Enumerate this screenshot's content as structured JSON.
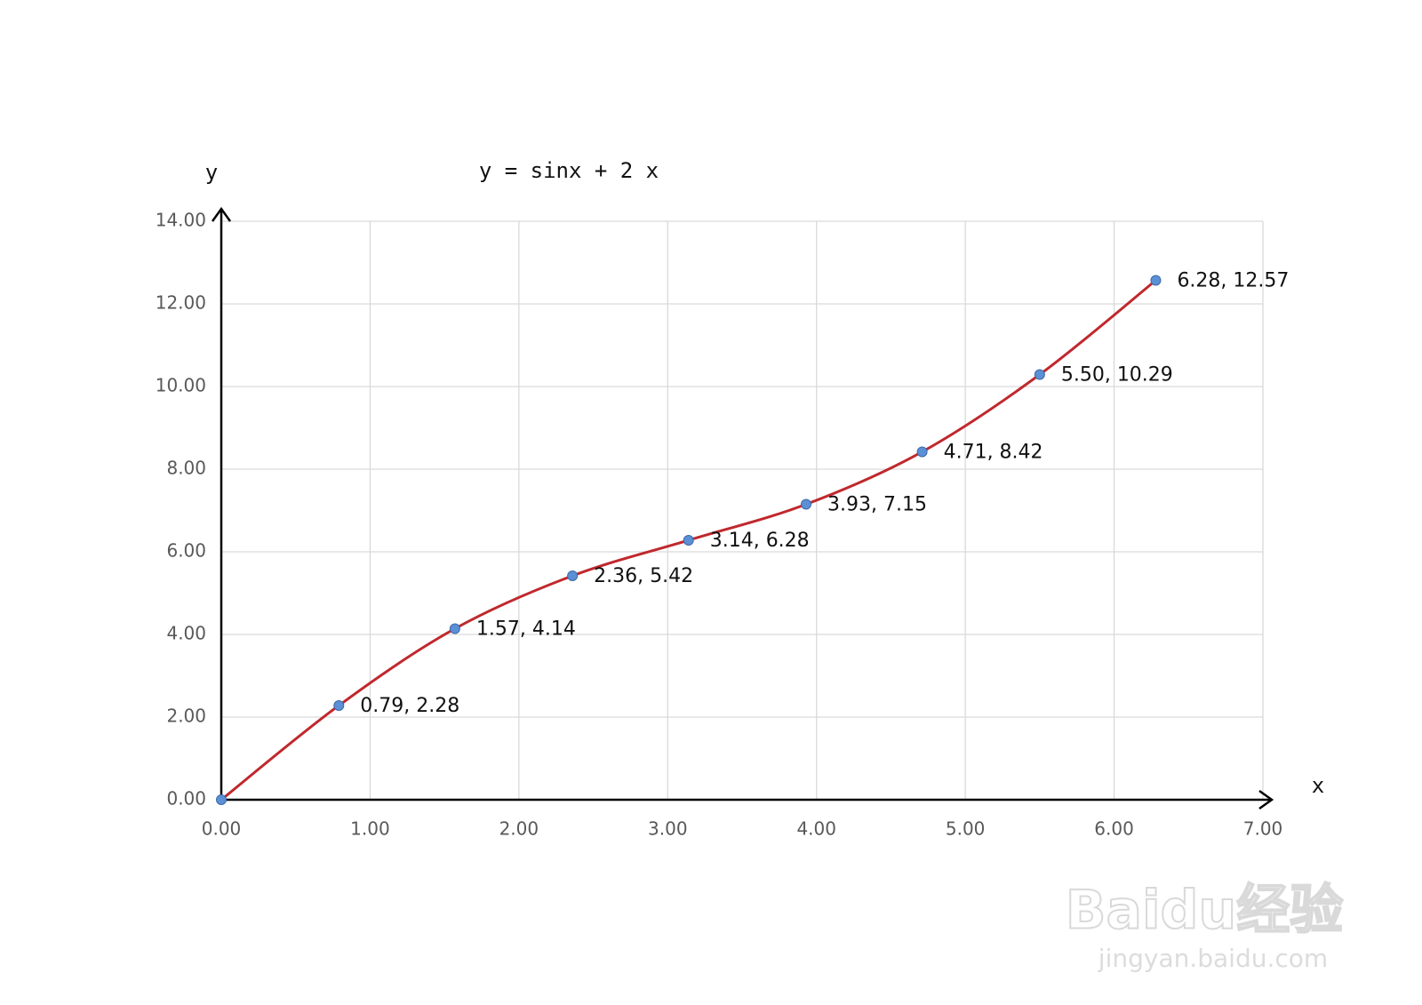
{
  "chart_data": {
    "type": "line",
    "title": "y = sinx + 2 x",
    "x_label": "x",
    "y_label": "y",
    "x": [
      0,
      0.79,
      1.57,
      2.36,
      3.14,
      3.93,
      4.71,
      5.5,
      6.28
    ],
    "values": [
      0,
      2.28,
      4.14,
      5.42,
      6.28,
      7.15,
      8.42,
      10.29,
      12.57
    ],
    "value_labels": [
      null,
      "0.79, 2.28",
      "1.57, 4.14",
      "2.36, 5.42",
      "3.14, 6.28",
      "3.93, 7.15",
      "4.71, 8.42",
      "5.50, 10.29",
      "6.28, 12.57"
    ],
    "color": "#c0282d",
    "marker_color": "#5b8fd6",
    "xlim": [
      0,
      7
    ],
    "xticks": [
      {
        "value": 0,
        "label": "0.00"
      },
      {
        "value": 1,
        "label": "1.00"
      },
      {
        "value": 2,
        "label": "2.00"
      },
      {
        "value": 3,
        "label": "3.00"
      },
      {
        "value": 4,
        "label": "4.00"
      },
      {
        "value": 5,
        "label": "5.00"
      },
      {
        "value": 6,
        "label": "6.00"
      },
      {
        "value": 7,
        "label": "7.00"
      }
    ],
    "ylim": [
      0,
      14
    ],
    "yticks": [
      {
        "value": 0,
        "label": "0.00"
      },
      {
        "value": 2,
        "label": "2.00"
      },
      {
        "value": 4,
        "label": "4.00"
      },
      {
        "value": 6,
        "label": "6.00"
      },
      {
        "value": 8,
        "label": "8.00"
      },
      {
        "value": 10,
        "label": "10.00"
      },
      {
        "value": 12,
        "label": "12.00"
      },
      {
        "value": 14,
        "label": "14.00"
      }
    ],
    "grid": true,
    "smooth": true,
    "watermark": [
      "Baidu经验",
      "jingyan.baidu.com"
    ]
  }
}
